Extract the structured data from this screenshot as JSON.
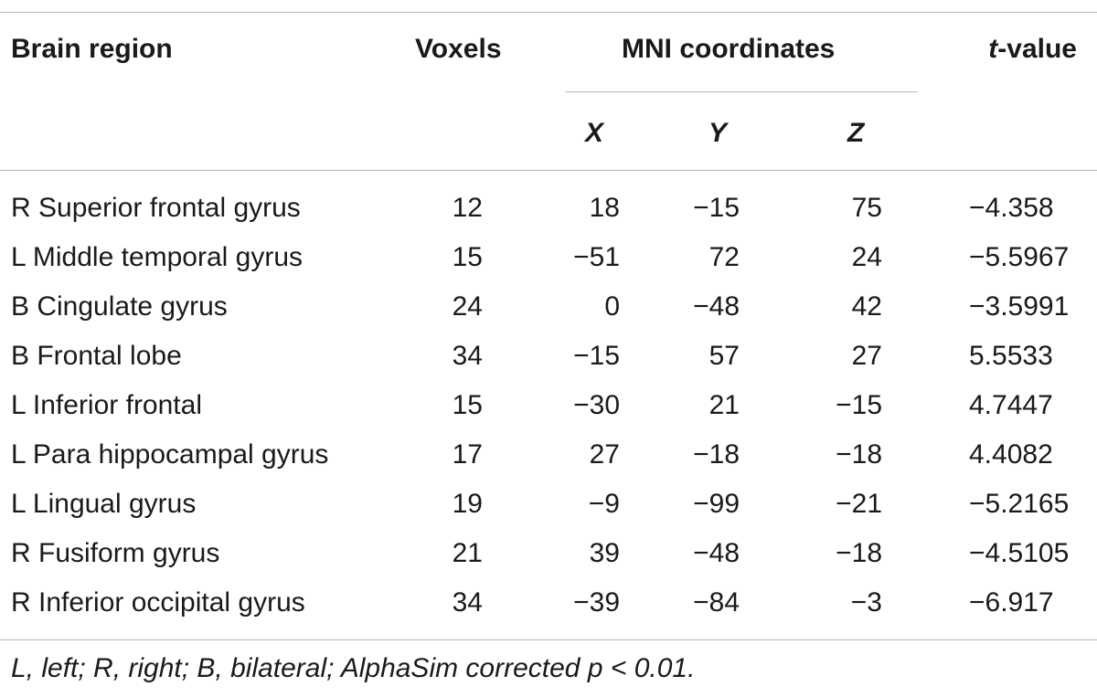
{
  "header": {
    "brain_region": "Brain region",
    "voxels": "Voxels",
    "mni_coordinates": "MNI coordinates",
    "t_value_italic": "t",
    "t_value_suffix": "-value",
    "x": "X",
    "y": "Y",
    "z": "Z"
  },
  "rows": [
    {
      "region": "R Superior frontal gyrus",
      "voxels": "12",
      "x": "18",
      "y": "−15",
      "z": "75",
      "t": "−4.358"
    },
    {
      "region": "L Middle temporal gyrus",
      "voxels": "15",
      "x": "−51",
      "y": "72",
      "z": "24",
      "t": "−5.5967"
    },
    {
      "region": "B Cingulate gyrus",
      "voxels": "24",
      "x": "0",
      "y": "−48",
      "z": "42",
      "t": "−3.5991"
    },
    {
      "region": "B Frontal lobe",
      "voxels": "34",
      "x": "−15",
      "y": "57",
      "z": "27",
      "t": "5.5533"
    },
    {
      "region": "L Inferior frontal",
      "voxels": "15",
      "x": "−30",
      "y": "21",
      "z": "−15",
      "t": "4.7447"
    },
    {
      "region": "L Para hippocampal gyrus",
      "voxels": "17",
      "x": "27",
      "y": "−18",
      "z": "−18",
      "t": "4.4082"
    },
    {
      "region": "L Lingual gyrus",
      "voxels": "19",
      "x": "−9",
      "y": "−99",
      "z": "−21",
      "t": "−5.2165"
    },
    {
      "region": "R Fusiform gyrus",
      "voxels": "21",
      "x": "39",
      "y": "−48",
      "z": "−18",
      "t": "−4.5105"
    },
    {
      "region": "R Inferior occipital gyrus",
      "voxels": "34",
      "x": "−39",
      "y": "−84",
      "z": "−3",
      "t": "−6.917"
    }
  ],
  "footnote": "L, left; R, right; B, bilateral; AlphaSim corrected p < 0.01."
}
